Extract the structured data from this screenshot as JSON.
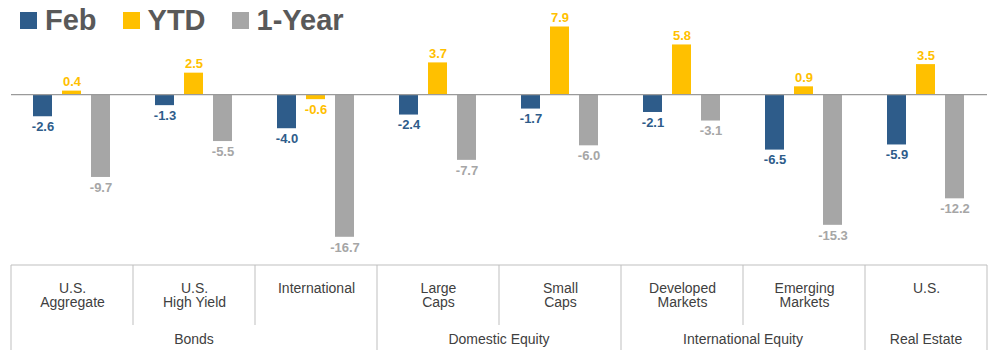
{
  "chart_data": {
    "type": "bar",
    "categories": [
      "U.S. Aggregate",
      "U.S. High Yield",
      "International",
      "Large Caps",
      "Small Caps",
      "Developed Markets",
      "Emerging Markets",
      "U.S."
    ],
    "category_groups": [
      {
        "name": "Bonds",
        "categories": [
          "U.S. Aggregate",
          "U.S. High Yield",
          "International"
        ]
      },
      {
        "name": "Domestic Equity",
        "categories": [
          "Large Caps",
          "Small Caps"
        ]
      },
      {
        "name": "International Equity",
        "categories": [
          "Developed Markets",
          "Emerging Markets"
        ]
      },
      {
        "name": "Real Estate",
        "categories": [
          "U.S."
        ]
      }
    ],
    "series": [
      {
        "name": "Feb",
        "color": "#2E5C8A",
        "values": [
          -2.6,
          -1.3,
          -4.0,
          -2.4,
          -1.7,
          -2.1,
          -6.5,
          -5.9
        ],
        "value_labels": [
          "-2.6",
          "-1.3",
          "-4.0",
          "-2.4",
          "-1.7",
          "-2.1",
          "-6.5",
          "-5.9"
        ]
      },
      {
        "name": "YTD",
        "color": "#FFC000",
        "values": [
          0.4,
          2.5,
          -0.6,
          3.7,
          7.9,
          5.8,
          0.9,
          3.5
        ]
      },
      {
        "name": "1-Year",
        "color": "#A6A6A6",
        "values": [
          -9.7,
          -5.5,
          -16.7,
          -7.7,
          -6.0,
          -3.1,
          -15.3,
          -12.2
        ],
        "value_labels": [
          "-9.7",
          "-5.5",
          "-16.7",
          "-7.7",
          "-6.0",
          "-3.1",
          "-15.3",
          "-12.2"
        ]
      }
    ],
    "ylim": [
      -20,
      11
    ],
    "grid": false,
    "legend": "top-left",
    "data_labels": true,
    "tick_labels": "x"
  }
}
